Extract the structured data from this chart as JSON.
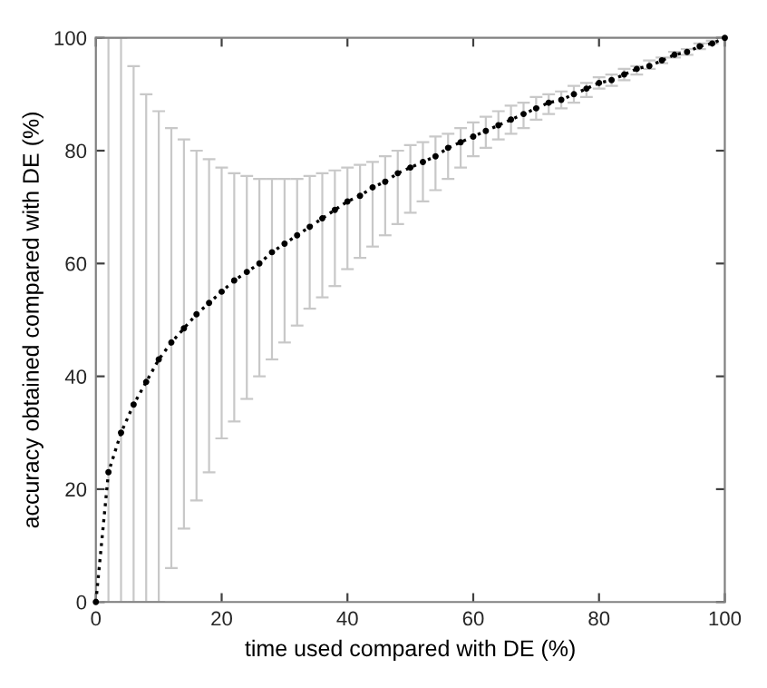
{
  "chart_data": {
    "type": "line",
    "xlabel": "time used compared with DE (%)",
    "ylabel": "accuracy obtained compared with DE (%)",
    "x": [
      0,
      2,
      4,
      6,
      8,
      10,
      12,
      14,
      16,
      18,
      20,
      22,
      24,
      26,
      28,
      30,
      32,
      34,
      36,
      38,
      40,
      42,
      44,
      46,
      48,
      50,
      52,
      54,
      56,
      58,
      60,
      62,
      64,
      66,
      68,
      70,
      72,
      74,
      76,
      78,
      80,
      82,
      84,
      86,
      88,
      90,
      92,
      94,
      96,
      98,
      100
    ],
    "series": [
      {
        "color": "#000000",
        "values": [
          0,
          23,
          30,
          35,
          39,
          43,
          46,
          48.5,
          51,
          53,
          55,
          57,
          58.5,
          60,
          62,
          63.5,
          65,
          66.5,
          68,
          69.5,
          71,
          72,
          73.5,
          74.5,
          76,
          77,
          78,
          79,
          80.5,
          81.5,
          82.5,
          83.5,
          84.5,
          85.5,
          86.5,
          87.5,
          88.5,
          89,
          90,
          91,
          92,
          92.5,
          93.5,
          94.5,
          95,
          96,
          97,
          97.5,
          98.5,
          99,
          100
        ],
        "errors": [
          null,
          [
            0,
            100
          ],
          [
            0,
            100
          ],
          [
            0,
            95
          ],
          [
            0,
            90
          ],
          [
            0,
            87
          ],
          [
            6,
            84
          ],
          [
            13,
            82
          ],
          [
            18,
            80
          ],
          [
            23,
            78.5
          ],
          [
            29,
            77
          ],
          [
            32,
            76
          ],
          [
            36,
            75.5
          ],
          [
            40,
            75
          ],
          [
            43,
            75
          ],
          [
            46,
            75
          ],
          [
            49,
            75
          ],
          [
            52,
            75.5
          ],
          [
            54,
            76
          ],
          [
            56,
            76.5
          ],
          [
            59,
            77
          ],
          [
            61,
            77.5
          ],
          [
            63,
            78
          ],
          [
            65,
            79
          ],
          [
            67,
            80
          ],
          [
            69,
            81
          ],
          [
            71,
            81.5
          ],
          [
            73,
            82.5
          ],
          [
            75,
            83
          ],
          [
            77,
            84
          ],
          [
            79,
            85
          ],
          [
            80.5,
            86
          ],
          [
            82,
            87
          ],
          [
            83,
            88
          ],
          [
            84,
            88.5
          ],
          [
            85.5,
            89.5
          ],
          [
            86.5,
            90
          ],
          [
            87.5,
            90.5
          ],
          [
            88.5,
            91.5
          ],
          [
            89.5,
            92
          ],
          [
            91,
            93
          ],
          [
            91.5,
            93.5
          ],
          [
            92.5,
            94.5
          ],
          [
            93.5,
            95
          ],
          [
            94.5,
            96
          ],
          [
            95.5,
            96.5
          ],
          [
            96.5,
            97.5
          ],
          [
            97,
            98
          ],
          [
            98,
            99
          ],
          [
            99,
            99.5
          ],
          [
            100,
            100
          ]
        ]
      }
    ],
    "xlim": [
      0,
      100
    ],
    "ylim": [
      0,
      100
    ],
    "xticks": [
      0,
      20,
      40,
      60,
      80,
      100
    ],
    "yticks": [
      0,
      20,
      40,
      60,
      80,
      100
    ],
    "grid": false,
    "legend": false,
    "marker": "circle",
    "line_style": "dotted"
  }
}
